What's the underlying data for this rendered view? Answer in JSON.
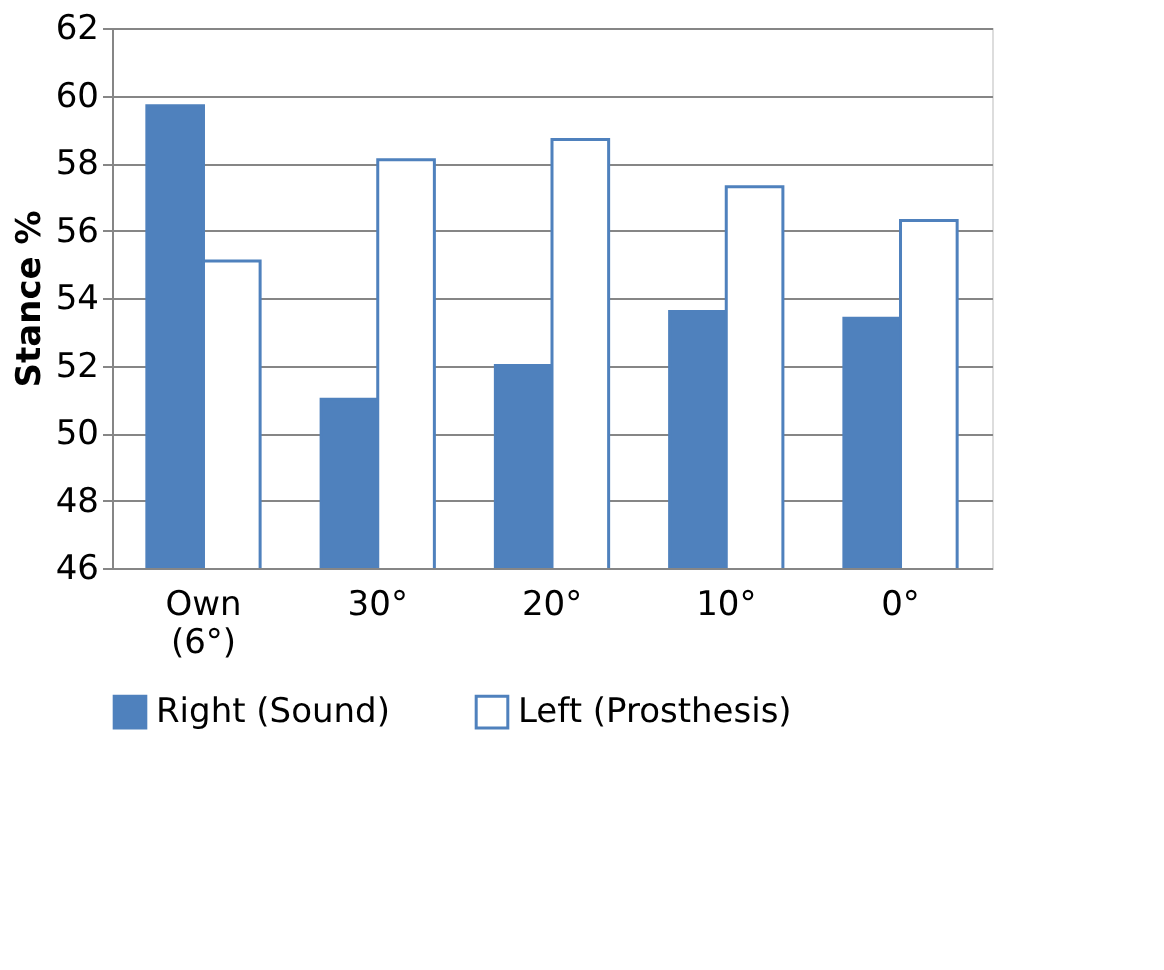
{
  "chart_data": {
    "type": "bar",
    "ylabel": "Stance %",
    "categories": [
      "Own\n(6°)",
      "30°",
      "20°",
      "10°",
      "0°"
    ],
    "series": [
      {
        "name": "Right (Sound)",
        "color": "#4f81bd",
        "values": [
          59.7,
          51.0,
          52.0,
          53.6,
          53.4
        ]
      },
      {
        "name": "Left (Prosthesis)",
        "color": "#4f81bd",
        "values": [
          55.1,
          58.1,
          58.7,
          57.3,
          56.3
        ]
      }
    ],
    "ylim": [
      46,
      62
    ],
    "yticks": [
      46,
      48,
      50,
      52,
      54,
      56,
      58,
      60,
      62
    ],
    "grid": "y",
    "legend": "bottom"
  }
}
